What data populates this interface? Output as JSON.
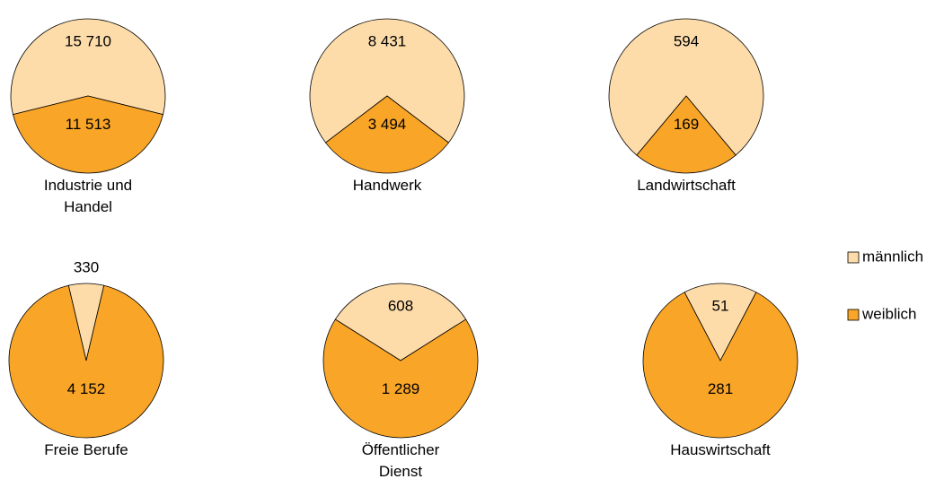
{
  "chart_data": [
    {
      "type": "pie",
      "title": "Industrie und Handel",
      "values": [
        15710,
        11513
      ],
      "value_labels": [
        "15 710",
        "11 513"
      ]
    },
    {
      "type": "pie",
      "title": "Handwerk",
      "values": [
        8431,
        3494
      ],
      "value_labels": [
        "8 431",
        "3 494"
      ]
    },
    {
      "type": "pie",
      "title": "Landwirtschaft",
      "values": [
        594,
        169
      ],
      "value_labels": [
        "594",
        "169"
      ]
    },
    {
      "type": "pie",
      "title": "Freie Berufe",
      "values": [
        330,
        4152
      ],
      "value_labels": [
        "330",
        "4 152"
      ]
    },
    {
      "type": "pie",
      "title": "Öffentlicher Dienst",
      "values": [
        608,
        1289
      ],
      "value_labels": [
        "608",
        "1 289"
      ]
    },
    {
      "type": "pie",
      "title": "Hauswirtschaft",
      "values": [
        51,
        281
      ],
      "value_labels": [
        "51",
        "281"
      ]
    }
  ],
  "legend": {
    "series": [
      {
        "name": "männlich",
        "color": "#fddcaa"
      },
      {
        "name": "weiblich",
        "color": "#f9a527"
      }
    ]
  }
}
